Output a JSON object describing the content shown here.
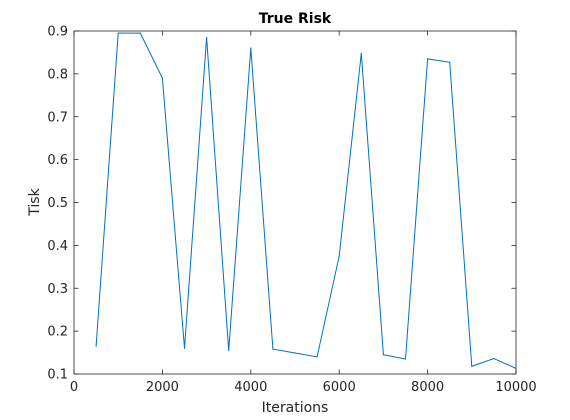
{
  "chart_data": {
    "type": "line",
    "title": "True Risk",
    "xlabel": "Iterations",
    "ylabel": "Tisk",
    "xlim": [
      0,
      10000
    ],
    "ylim": [
      0.1,
      0.9
    ],
    "x_ticks": [
      0,
      2000,
      4000,
      6000,
      8000,
      10000
    ],
    "x_tick_labels": [
      "0",
      "2000",
      "4000",
      "6000",
      "8000",
      "10000"
    ],
    "y_ticks": [
      0.1,
      0.2,
      0.3,
      0.4,
      0.5,
      0.6,
      0.7,
      0.8,
      0.9
    ],
    "y_tick_labels": [
      "0.1",
      "0.2",
      "0.3",
      "0.4",
      "0.5",
      "0.6",
      "0.7",
      "0.8",
      "0.9"
    ],
    "grid": false,
    "series": [
      {
        "color": "#0072bd",
        "x": [
          500,
          1000,
          1500,
          2000,
          2500,
          3000,
          3500,
          4000,
          4500,
          5000,
          5500,
          6000,
          6500,
          7000,
          7500,
          8000,
          8500,
          9000,
          9500,
          10000
        ],
        "y": [
          0.165,
          0.895,
          0.895,
          0.79,
          0.16,
          0.885,
          0.155,
          0.86,
          0.158,
          0.149,
          0.14,
          0.375,
          0.848,
          0.145,
          0.135,
          0.835,
          0.827,
          0.118,
          0.136,
          0.113
        ]
      }
    ]
  }
}
